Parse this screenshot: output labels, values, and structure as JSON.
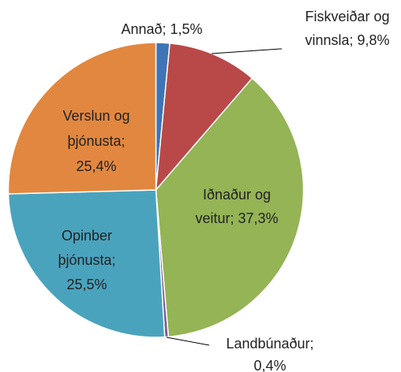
{
  "chart_data": {
    "type": "pie",
    "values": [
      1.5,
      9.8,
      37.3,
      0.4,
      25.5,
      25.4
    ],
    "value_labels": [
      [
        "Annað; 1,5%"
      ],
      [
        "Fiskveiðar og",
        "vinnsla; 9,8%"
      ],
      [
        "Iðnaður og",
        "veitur; 37,3%"
      ],
      [
        "Landbúnaður;",
        "0,4%"
      ],
      [
        "Opinber",
        "þjónusta;",
        "25,5%"
      ],
      [
        "Verslun og",
        "þjónusta;",
        "25,4%"
      ]
    ],
    "colors": [
      "#3f74b5",
      "#b94948",
      "#94b455",
      "#7b5e9d",
      "#4aa3bd",
      "#e2873f"
    ]
  }
}
